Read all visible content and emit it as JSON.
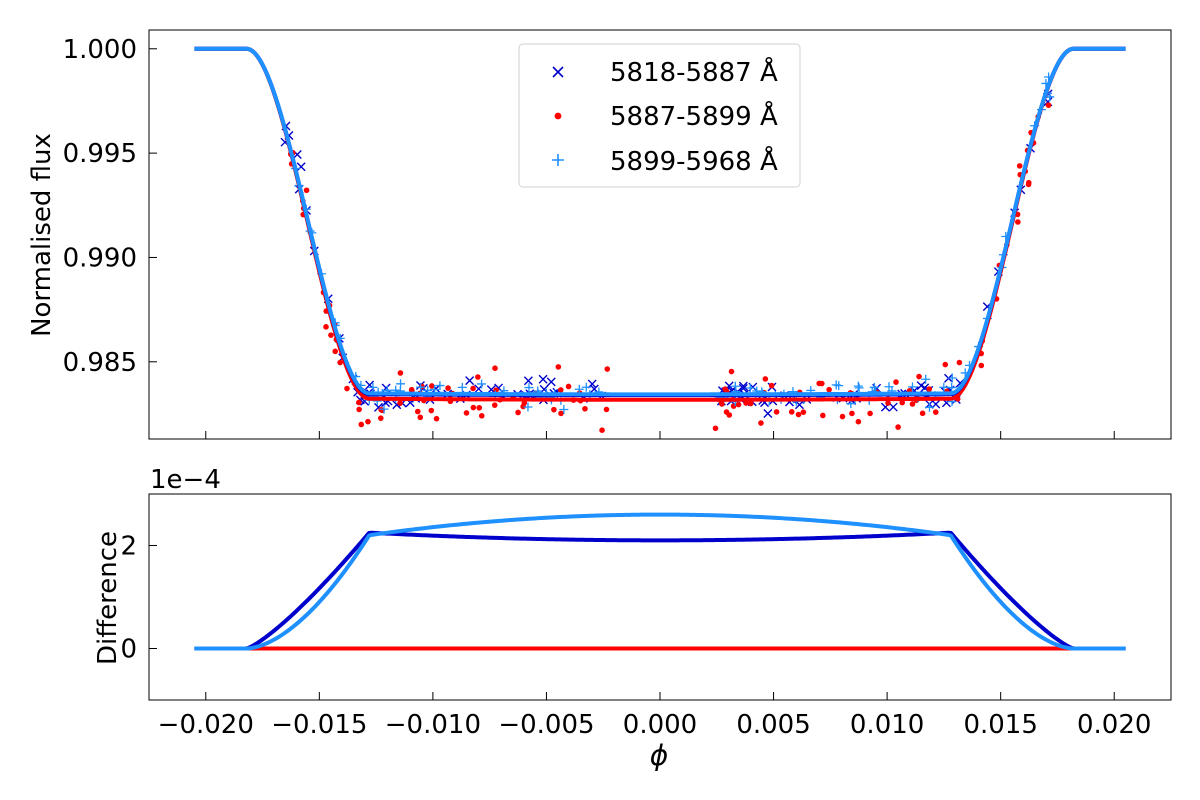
{
  "chart_data": [
    {
      "type": "scatter+line",
      "panel": "top",
      "ylabel": "Normalised flux",
      "xlabel": "",
      "xlim": [
        -0.0225,
        0.0225
      ],
      "ylim": [
        0.9813,
        1.0009
      ],
      "y_ticks": [
        0.985,
        0.99,
        0.995,
        1.0
      ],
      "y_tick_labels": [
        "0.985",
        "0.990",
        "0.995",
        "1.000"
      ],
      "x_ticks": [
        -0.02,
        -0.015,
        -0.01,
        -0.005,
        0.0,
        0.005,
        0.01,
        0.015,
        0.02
      ],
      "legend": {
        "position": "top-center",
        "entries": [
          "5818-5887 Å",
          "5887-5899 Å",
          "5899-5968 Å"
        ]
      },
      "model": {
        "contact_half_width": 0.0182,
        "flat_half_width": 0.0128,
        "depths": [
          0.0166,
          0.01682,
          0.01656
        ],
        "limb_curvature": [
          0.003,
          0.003,
          0.0028
        ]
      },
      "series": [
        {
          "name": "5818-5887 Å",
          "marker": "x",
          "color": "#0000cd",
          "phase_range": [
            [
              -0.0168,
              -0.0023
            ],
            [
              0.0023,
              0.0172
            ]
          ],
          "n": 115,
          "scatter": 0.00035,
          "seed": 11
        },
        {
          "name": "5887-5899 Å",
          "marker": "dot",
          "color": "#ff0000",
          "phase_range": [
            [
              -0.0168,
              -0.0023
            ],
            [
              0.0023,
              0.0172
            ]
          ],
          "n": 140,
          "scatter": 0.00065,
          "seed": 23
        },
        {
          "name": "5899-5968 Å",
          "marker": "plus",
          "color": "#1e90ff",
          "phase_range": [
            [
              -0.0168,
              -0.0023
            ],
            [
              0.0023,
              0.0172
            ]
          ],
          "n": 110,
          "scatter": 0.0003,
          "seed": 37
        }
      ]
    },
    {
      "type": "line",
      "panel": "bottom",
      "ylabel": "Difference",
      "xlabel": "ϕ",
      "offset_text": "1e−4",
      "ylim": [
        -1.0,
        3.0
      ],
      "y_ticks": [
        0,
        2
      ],
      "y_tick_labels": [
        "0",
        "2"
      ],
      "x_ticks": [
        -0.02,
        -0.015,
        -0.01,
        -0.005,
        0.0,
        0.005,
        0.01,
        0.015,
        0.02
      ],
      "x_tick_labels": [
        "−0.020",
        "−0.015",
        "−0.010",
        "−0.005",
        "0.000",
        "0.005",
        "0.010",
        "0.015",
        "0.020"
      ],
      "series": [
        {
          "name": "5818-5887 Å",
          "color": "#0000cd",
          "plateau": 2.25,
          "center": 2.1,
          "ramp_power": 1.25
        },
        {
          "name": "5887-5899 Å",
          "color": "#ff0000",
          "plateau": 0.0,
          "center": 0.0,
          "ramp_power": 1.0
        },
        {
          "name": "5899-5968 Å",
          "color": "#1e90ff",
          "plateau": 2.2,
          "center": 2.6,
          "ramp_power": 1.7
        }
      ]
    }
  ]
}
